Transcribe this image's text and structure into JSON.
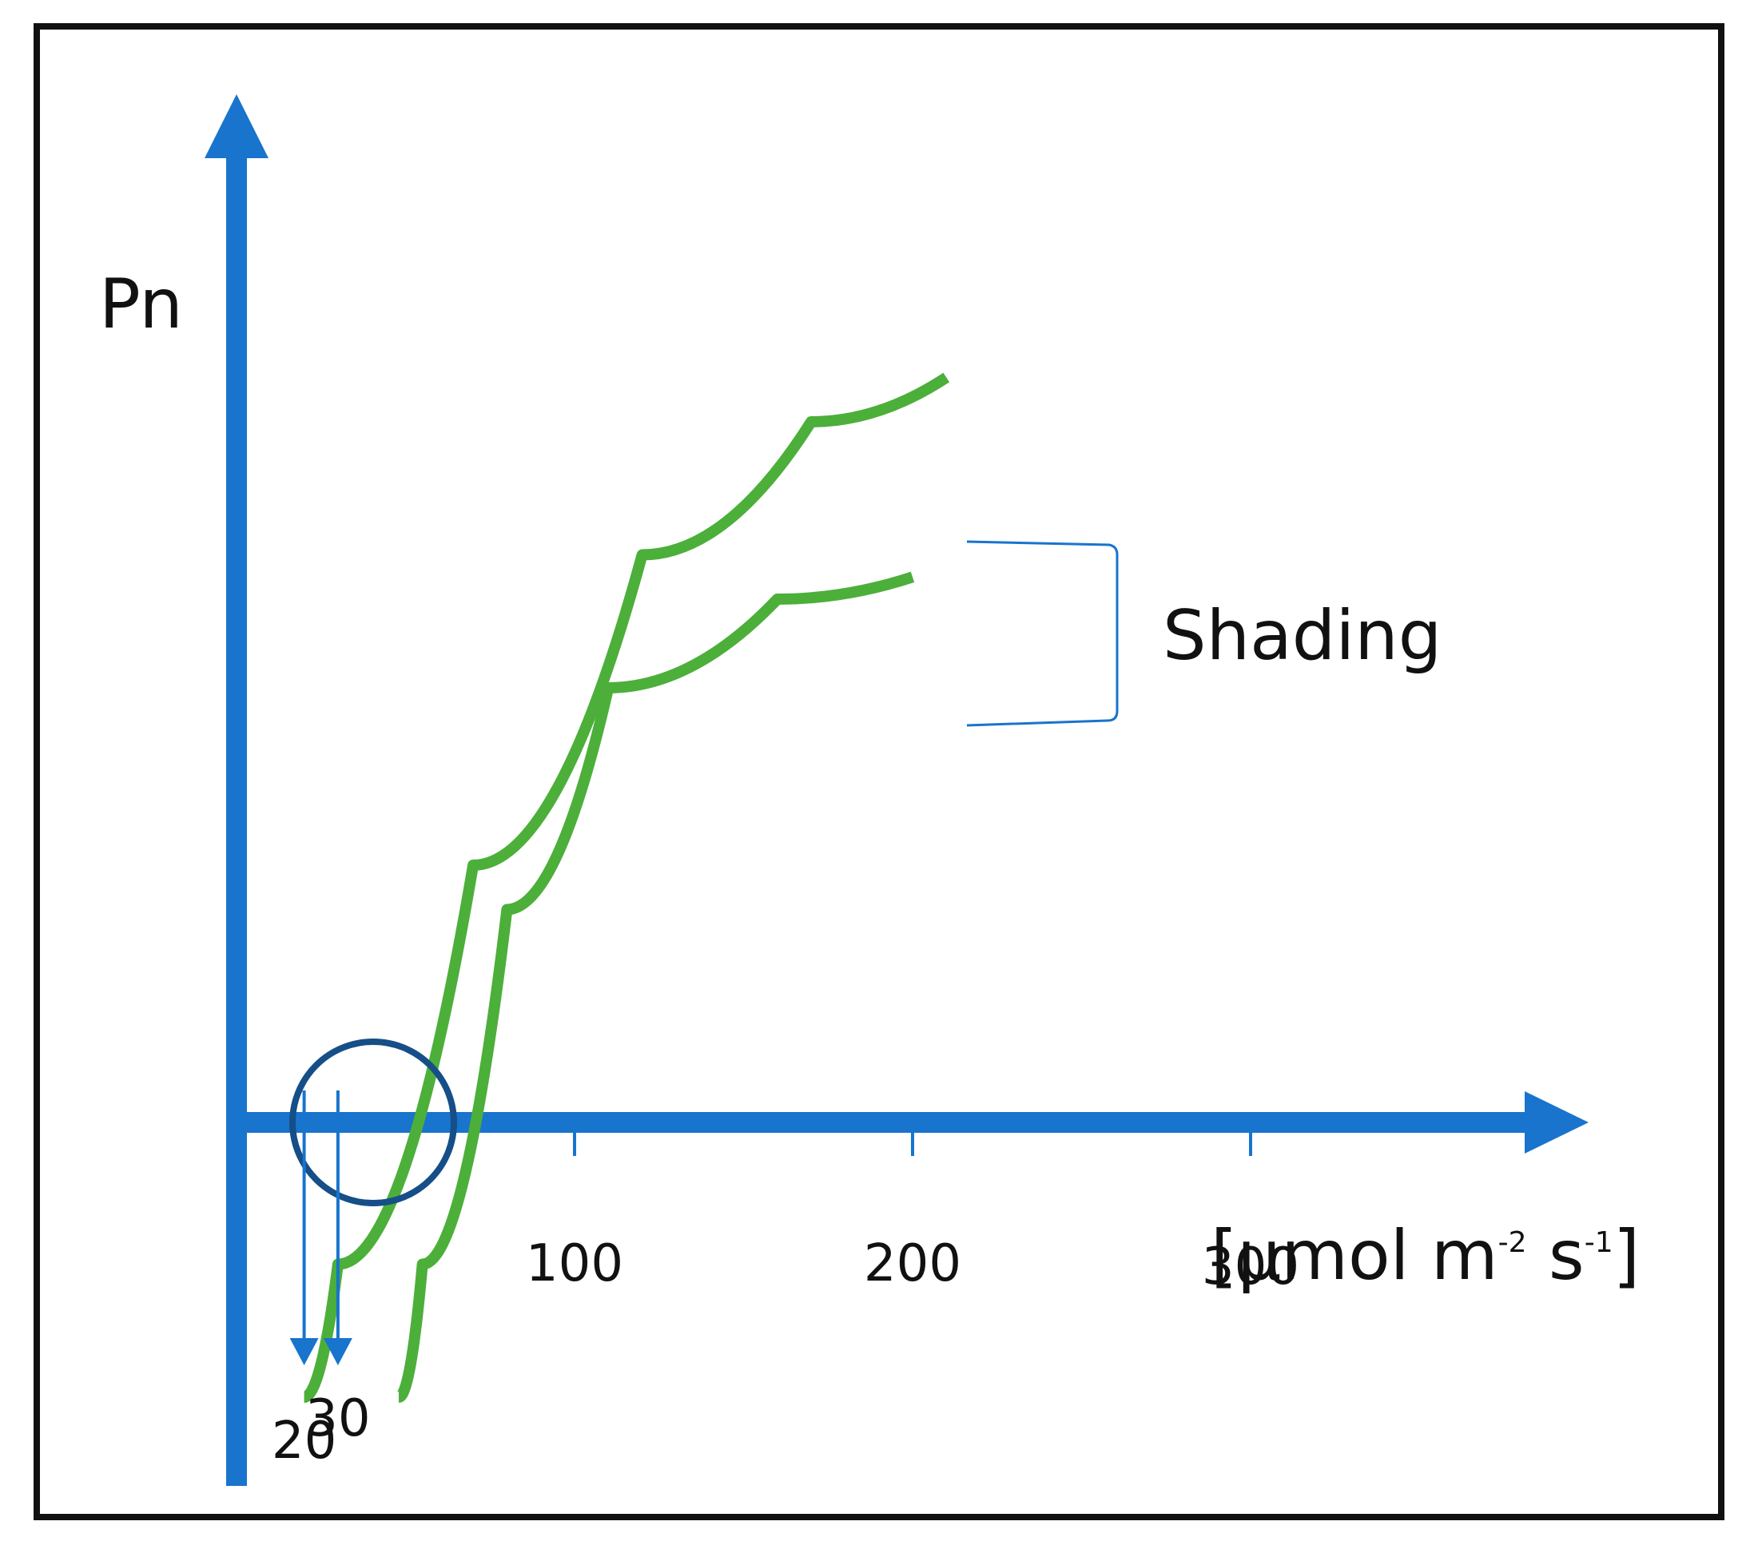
{
  "colors": {
    "axis": "#1874CD",
    "curve": "#4CAF3A",
    "circle": "#164E88",
    "frame": "#111111",
    "text": "#111111"
  },
  "chart_data": {
    "type": "line",
    "title": "",
    "ylabel": "Pn",
    "xlabel": {
      "prefix": "[µmol m",
      "exp1": "-2",
      "mid": " s",
      "exp2": "-1",
      "suffix": "]"
    },
    "xlim": [
      0,
      400
    ],
    "ylim": [
      -1,
      5
    ],
    "grid": false,
    "x_ticks": [
      "100",
      "200",
      "300"
    ],
    "tick_values": [
      100,
      200,
      300
    ],
    "light_compensation_points": [
      {
        "label": "20",
        "value": 20
      },
      {
        "label": "30",
        "value": 30
      }
    ],
    "bracket_label": "Shading",
    "series": [
      {
        "values": [
          {
            "x": 20,
            "y": -0.6
          },
          {
            "x": 30,
            "y": 0
          },
          {
            "x": 70,
            "y": 1.8
          },
          {
            "x": 120,
            "y": 3.2
          },
          {
            "x": 170,
            "y": 3.8
          },
          {
            "x": 210,
            "y": 4.0
          }
        ]
      },
      {
        "values": [
          {
            "x": 48,
            "y": -0.6
          },
          {
            "x": 55,
            "y": 0
          },
          {
            "x": 80,
            "y": 1.6
          },
          {
            "x": 110,
            "y": 2.6
          },
          {
            "x": 160,
            "y": 3.0
          },
          {
            "x": 200,
            "y": 3.1
          }
        ]
      }
    ]
  }
}
